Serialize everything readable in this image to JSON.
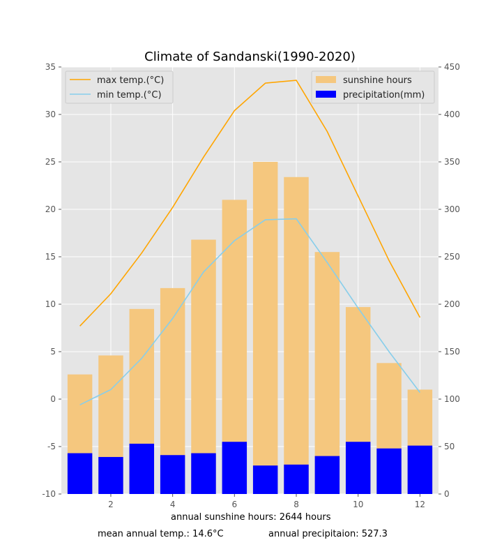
{
  "chart_data": {
    "type": "bar",
    "title": "Climate of Sandanski(1990-2020)",
    "x": [
      1,
      2,
      3,
      4,
      5,
      6,
      7,
      8,
      9,
      10,
      11,
      12
    ],
    "xticks": [
      2,
      4,
      6,
      8,
      10,
      12
    ],
    "left_axis": {
      "ylim": [
        -10,
        35
      ],
      "ticks": [
        -10,
        -5,
        0,
        5,
        10,
        15,
        20,
        25,
        30,
        35
      ]
    },
    "right_axis": {
      "ylim": [
        0,
        450
      ],
      "ticks": [
        0,
        50,
        100,
        150,
        200,
        250,
        300,
        350,
        400,
        450
      ]
    },
    "series": [
      {
        "name": "max temp.(°C)",
        "type": "line",
        "axis": "left",
        "color": "#FFA500",
        "values": [
          7.7,
          11.1,
          15.4,
          20.2,
          25.5,
          30.4,
          33.3,
          33.6,
          28.2,
          21.4,
          14.6,
          8.6
        ]
      },
      {
        "name": "min temp.(°C)",
        "type": "line",
        "axis": "left",
        "color": "#87CEEB",
        "values": [
          -0.6,
          1.0,
          4.3,
          8.5,
          13.4,
          16.7,
          18.9,
          19.0,
          14.4,
          9.6,
          5.0,
          0.7
        ]
      },
      {
        "name": "sunshine hours",
        "type": "bar",
        "axis": "right",
        "color": "#F5C77E",
        "values": [
          126,
          146,
          195,
          217,
          268,
          310,
          350,
          334,
          255,
          197,
          138,
          110
        ]
      },
      {
        "name": "precipitation(mm)",
        "type": "bar",
        "axis": "right",
        "color": "#0000FF",
        "values": [
          43,
          39,
          53,
          41,
          43,
          55,
          30,
          31,
          40,
          55,
          48,
          51
        ]
      }
    ],
    "legend_left": [
      "max temp.(°C)",
      "min temp.(°C)"
    ],
    "legend_right": [
      "sunshine hours",
      "precipitation(mm)"
    ],
    "grid": true
  },
  "footer": {
    "sunshine": "annual sunshine hours: 2644 hours",
    "temp": "mean annual temp.: 14.6°C",
    "precip": "annual precipitaion: 527.3"
  }
}
